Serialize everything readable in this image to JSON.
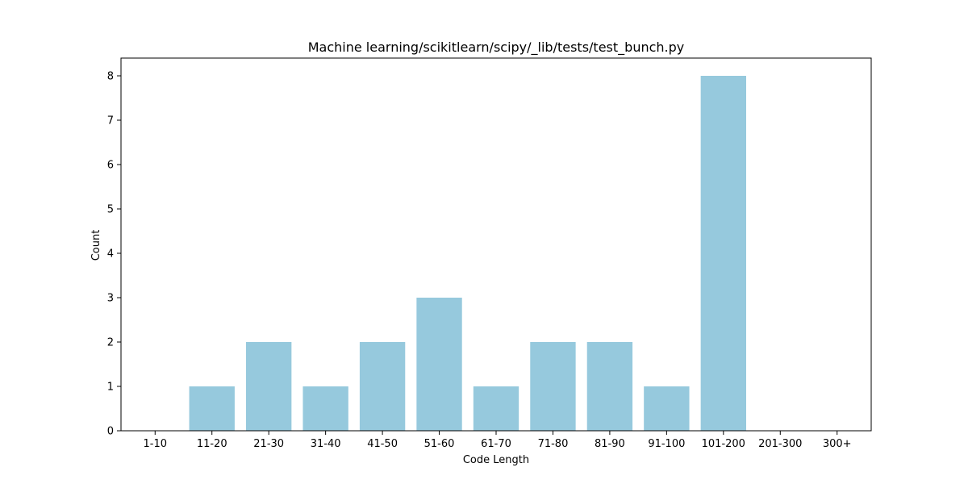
{
  "chart_data": {
    "type": "bar",
    "title": "Machine learning/scikitlearn/scipy/_lib/tests/test_bunch.py",
    "xlabel": "Code Length",
    "ylabel": "Count",
    "categories": [
      "1-10",
      "11-20",
      "21-30",
      "31-40",
      "41-50",
      "51-60",
      "61-70",
      "71-80",
      "81-90",
      "91-100",
      "101-200",
      "201-300",
      "300+"
    ],
    "values": [
      0,
      1,
      2,
      1,
      2,
      3,
      1,
      2,
      2,
      1,
      8,
      0,
      0
    ],
    "ylim": [
      0,
      8.4
    ],
    "yticks": [
      0,
      1,
      2,
      3,
      4,
      5,
      6,
      7,
      8
    ],
    "grid": false,
    "legend": "none",
    "bar_color": "#96c9dd"
  }
}
